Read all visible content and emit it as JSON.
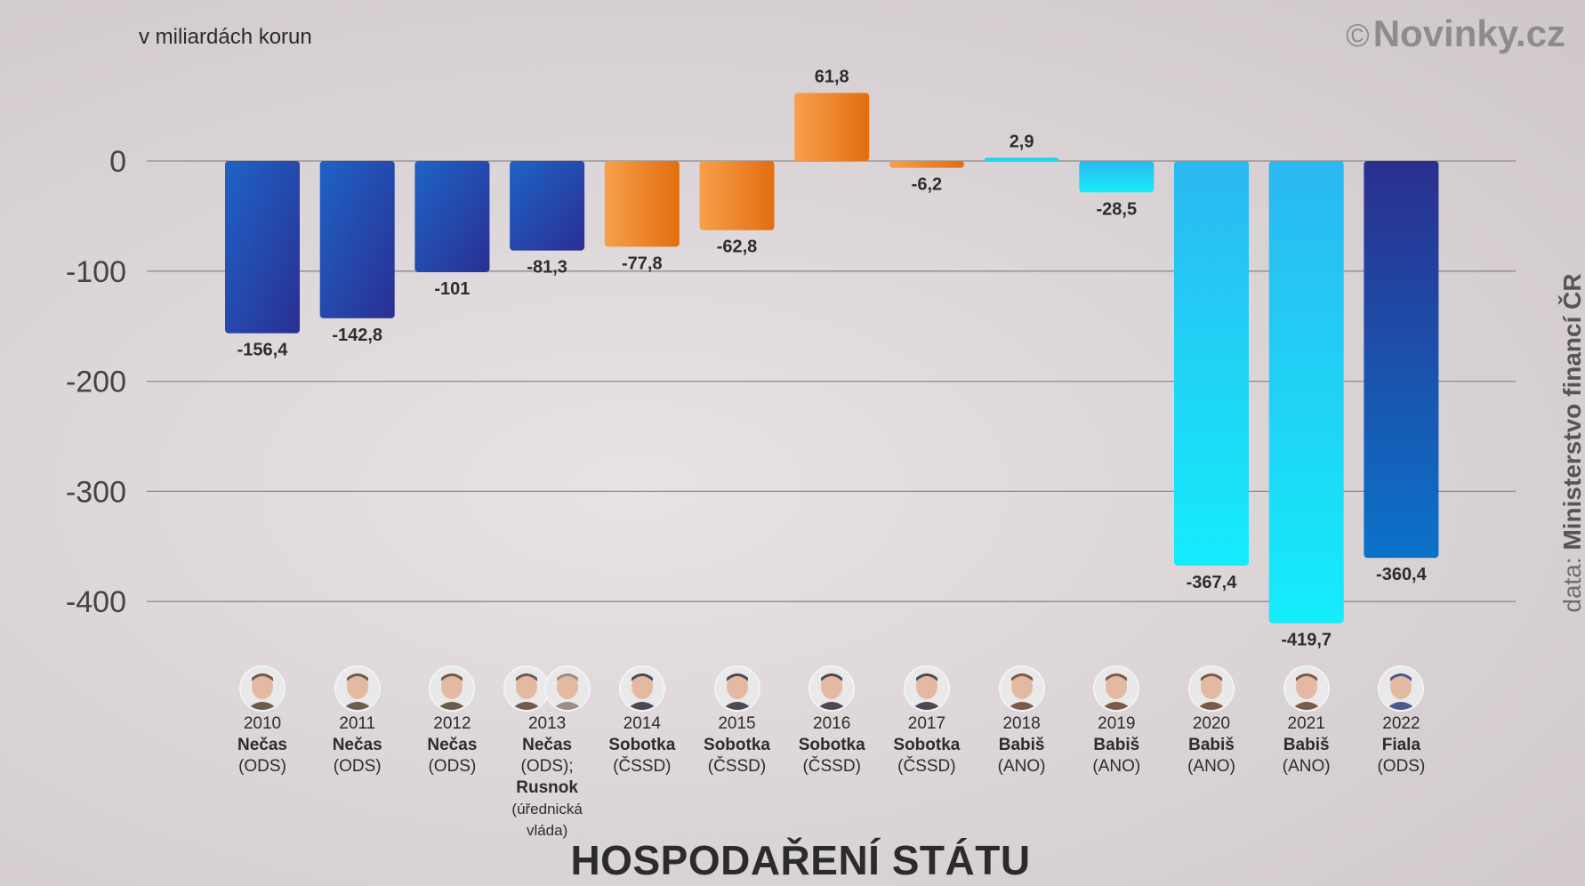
{
  "watermark": {
    "symbol": "©",
    "text": "Novinky.cz"
  },
  "source": {
    "prefix": "data: ",
    "name": "Ministerstvo financí ČR"
  },
  "title": "HOSPODAŘENÍ STÁTU",
  "chart_data": {
    "type": "bar",
    "unit_label": "v miliardách korun",
    "categories": [
      "2010",
      "2011",
      "2012",
      "2013",
      "2014",
      "2015",
      "2016",
      "2017",
      "2018",
      "2019",
      "2020",
      "2021",
      "2022"
    ],
    "values": [
      -156.4,
      -142.8,
      -101,
      -81.3,
      -77.8,
      -62.8,
      61.8,
      -6.2,
      2.9,
      -28.5,
      -367.4,
      -419.7,
      -360.4
    ],
    "value_labels": [
      "-156,4",
      "-142,8",
      "-101",
      "-81,3",
      "-77,8",
      "-62,8",
      "61,8",
      "-6,2",
      "2,9",
      "-28,5",
      "-367,4",
      "-419,7",
      "-360,4"
    ],
    "y_ticks": [
      0,
      -100,
      -200,
      -300,
      -400
    ],
    "ylim": [
      -420,
      62
    ],
    "grid": true,
    "colors": [
      "#2140a8",
      "#2140a8",
      "#2140a8",
      "#2140a8",
      "#ef8a2e",
      "#ef8a2e",
      "#ef8a2e",
      "#ef8a2e",
      "#22c8f2",
      "#22c8f2",
      "#22c8f2",
      "#22c8f2",
      "#283a9e"
    ]
  },
  "governments": [
    {
      "year": "2010",
      "name": "Nečas",
      "party": "(ODS)",
      "avatar_color": "#6f5a4e"
    },
    {
      "year": "2011",
      "name": "Nečas",
      "party": "(ODS)",
      "avatar_color": "#6f5a4e"
    },
    {
      "year": "2012",
      "name": "Nečas",
      "party": "(ODS)",
      "avatar_color": "#6f5a4e"
    },
    {
      "year": "2013",
      "name": "Nečas",
      "party": "(ODS);",
      "name2": "Rusnok",
      "party2": "(úřednická vláda)",
      "avatar_color": "#6f5a4e",
      "avatar2_color": "#9a8f86"
    },
    {
      "year": "2014",
      "name": "Sobotka",
      "party": "(ČSSD)",
      "avatar_color": "#4a4a55"
    },
    {
      "year": "2015",
      "name": "Sobotka",
      "party": "(ČSSD)",
      "avatar_color": "#4a4a55"
    },
    {
      "year": "2016",
      "name": "Sobotka",
      "party": "(ČSSD)",
      "avatar_color": "#4a4a55"
    },
    {
      "year": "2017",
      "name": "Sobotka",
      "party": "(ČSSD)",
      "avatar_color": "#4a4a55"
    },
    {
      "year": "2018",
      "name": "Babiš",
      "party": "(ANO)",
      "avatar_color": "#7a5a4a"
    },
    {
      "year": "2019",
      "name": "Babiš",
      "party": "(ANO)",
      "avatar_color": "#7a5a4a"
    },
    {
      "year": "2020",
      "name": "Babiš",
      "party": "(ANO)",
      "avatar_color": "#7a5a4a"
    },
    {
      "year": "2021",
      "name": "Babiš",
      "party": "(ANO)",
      "avatar_color": "#7a5a4a"
    },
    {
      "year": "2022",
      "name": "Fiala",
      "party": "(ODS)",
      "avatar_color": "#4b5a8c"
    }
  ]
}
